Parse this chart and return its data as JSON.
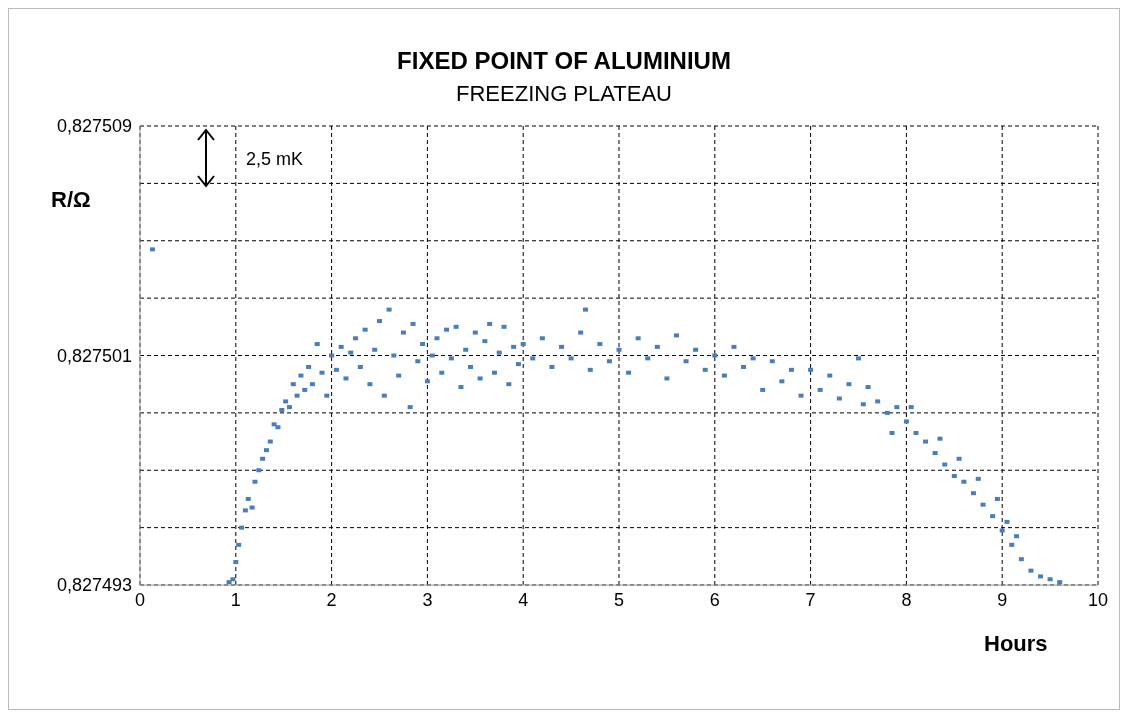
{
  "chart_data": {
    "type": "scatter",
    "title": "FIXED POINT OF ALUMINIUM",
    "subtitle": "FREEZING PLATEAU",
    "xlabel": "Hours",
    "ylabel": "R/Ω",
    "annotations": [
      "2,5 mK"
    ],
    "x": [
      0.13,
      0.93,
      0.97,
      1.0,
      1.03,
      1.06,
      1.1,
      1.13,
      1.17,
      1.2,
      1.24,
      1.28,
      1.32,
      1.36,
      1.4,
      1.44,
      1.48,
      1.52,
      1.56,
      1.6,
      1.64,
      1.68,
      1.72,
      1.76,
      1.8,
      1.85,
      1.9,
      1.95,
      2.0,
      2.05,
      2.1,
      2.15,
      2.2,
      2.25,
      2.3,
      2.35,
      2.4,
      2.45,
      2.5,
      2.55,
      2.6,
      2.65,
      2.7,
      2.75,
      2.82,
      2.85,
      2.9,
      2.95,
      3.0,
      3.05,
      3.1,
      3.15,
      3.2,
      3.25,
      3.3,
      3.35,
      3.4,
      3.45,
      3.5,
      3.55,
      3.6,
      3.65,
      3.7,
      3.75,
      3.8,
      3.85,
      3.9,
      3.95,
      4.0,
      4.1,
      4.2,
      4.3,
      4.4,
      4.5,
      4.6,
      4.65,
      4.7,
      4.8,
      4.9,
      5.0,
      5.1,
      5.2,
      5.3,
      5.4,
      5.5,
      5.6,
      5.7,
      5.8,
      5.9,
      6.0,
      6.1,
      6.2,
      6.3,
      6.4,
      6.5,
      6.6,
      6.7,
      6.8,
      6.9,
      7.0,
      7.1,
      7.2,
      7.3,
      7.4,
      7.5,
      7.55,
      7.6,
      7.7,
      7.8,
      7.85,
      7.9,
      8.0,
      8.05,
      8.1,
      8.2,
      8.3,
      8.35,
      8.4,
      8.5,
      8.55,
      8.6,
      8.7,
      8.75,
      8.8,
      8.9,
      8.95,
      9.0,
      9.05,
      9.1,
      9.15,
      9.2,
      9.3,
      9.4,
      9.5,
      9.6
    ],
    "series": [
      {
        "color": "#4a7ebb",
        "values": [
          0.8275047,
          0.8274931,
          0.8274932,
          0.8274938,
          0.8274944,
          0.827495,
          0.8274956,
          0.827496,
          0.8274957,
          0.8274966,
          0.827497,
          0.8274974,
          0.8274977,
          0.827498,
          0.8274986,
          0.8274985,
          0.8274991,
          0.8274994,
          0.8274992,
          0.8275,
          0.8274996,
          0.8275003,
          0.8274998,
          0.8275006,
          0.8275,
          0.8275014,
          0.8275004,
          0.8274996,
          0.827501,
          0.8275005,
          0.8275013,
          0.8275002,
          0.8275011,
          0.8275016,
          0.8275006,
          0.8275019,
          0.8275,
          0.8275012,
          0.8275022,
          0.8274996,
          0.8275026,
          0.827501,
          0.8275003,
          0.8275018,
          0.8274992,
          0.8275021,
          0.8275008,
          0.8275014,
          0.8275001,
          0.827501,
          0.8275016,
          0.8275004,
          0.8275019,
          0.8275009,
          0.827502,
          0.8274999,
          0.8275012,
          0.8275006,
          0.8275018,
          0.8275002,
          0.8275015,
          0.8275021,
          0.8275004,
          0.8275011,
          0.827502,
          0.8275,
          0.8275013,
          0.8275007,
          0.8275014,
          0.8275009,
          0.8275016,
          0.8275006,
          0.8275013,
          0.8275009,
          0.8275018,
          0.8275026,
          0.8275005,
          0.8275014,
          0.8275008,
          0.8275012,
          0.8275004,
          0.8275016,
          0.8275009,
          0.8275013,
          0.8275002,
          0.8275017,
          0.8275008,
          0.8275012,
          0.8275005,
          0.827501,
          0.8275003,
          0.8275013,
          0.8275006,
          0.8275009,
          0.8274998,
          0.8275008,
          0.8275001,
          0.8275005,
          0.8274996,
          0.8275005,
          0.8274998,
          0.8275003,
          0.8274995,
          0.8275,
          0.8275009,
          0.8274993,
          0.8274999,
          0.8274994,
          0.827499,
          0.8274983,
          0.8274992,
          0.8274987,
          0.8274992,
          0.8274983,
          0.827498,
          0.8274976,
          0.8274981,
          0.8274972,
          0.8274968,
          0.8274974,
          0.8274966,
          0.8274962,
          0.8274967,
          0.8274958,
          0.8274954,
          0.827496,
          0.8274949,
          0.8274952,
          0.8274944,
          0.8274947,
          0.8274939,
          0.8274935,
          0.8274933,
          0.8274932,
          0.8274931
        ]
      }
    ],
    "xlim": [
      0,
      10
    ],
    "xticks": [
      0,
      1,
      2,
      3,
      4,
      5,
      6,
      7,
      8,
      9,
      10
    ],
    "ylim": [
      0.827493,
      0.827509
    ],
    "yticks": [
      {
        "value": 0.827493,
        "label": "0,827493"
      },
      {
        "value": 0.827495,
        "label": null
      },
      {
        "value": 0.827497,
        "label": null
      },
      {
        "value": 0.827499,
        "label": null
      },
      {
        "value": 0.827501,
        "label": "0,827501"
      },
      {
        "value": 0.827503,
        "label": null
      },
      {
        "value": 0.827505,
        "label": null
      },
      {
        "value": 0.827507,
        "label": null
      },
      {
        "value": 0.827509,
        "label": "0,827509"
      }
    ],
    "grid": true,
    "marker": "square"
  }
}
